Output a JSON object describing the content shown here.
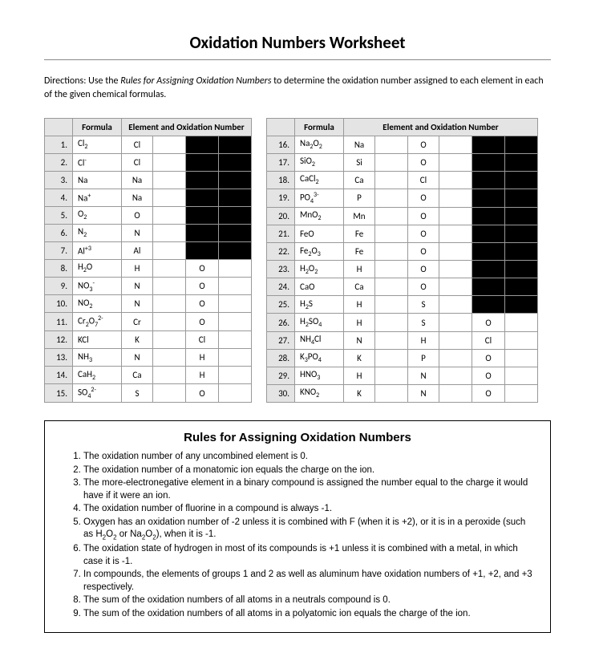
{
  "title": "Oxidation Numbers Worksheet",
  "directions_prefix": "Directions:  Use the ",
  "directions_em": "Rules for Assigning Oxidation Numbers",
  "directions_suffix": " to determine the oxidation number assigned to each element in each of the given chemical formulas.",
  "header_formula": "Formula",
  "header_element_left": "Element and Oxidation Number",
  "header_element_right": "Element and Oxidation Number",
  "left": [
    {
      "n": "1.",
      "f": "Cl<sub>2</sub>",
      "els": [
        "Cl"
      ],
      "blanks": 1,
      "blacks": 2
    },
    {
      "n": "2.",
      "f": "Cl<sup>-</sup>",
      "els": [
        "Cl"
      ],
      "blanks": 1,
      "blacks": 2
    },
    {
      "n": "3.",
      "f": "Na",
      "els": [
        "Na"
      ],
      "blanks": 1,
      "blacks": 2
    },
    {
      "n": "4.",
      "f": "Na<sup>+</sup>",
      "els": [
        "Na"
      ],
      "blanks": 1,
      "blacks": 2
    },
    {
      "n": "5.",
      "f": "O<sub>2</sub>",
      "els": [
        "O"
      ],
      "blanks": 1,
      "blacks": 2
    },
    {
      "n": "6.",
      "f": "N<sub>2</sub>",
      "els": [
        "N"
      ],
      "blanks": 1,
      "blacks": 2
    },
    {
      "n": "7.",
      "f": "Al<sup>+3</sup>",
      "els": [
        "Al"
      ],
      "blanks": 1,
      "blacks": 2
    },
    {
      "n": "8.",
      "f": "H<sub>2</sub>O",
      "els": [
        "H",
        "O"
      ],
      "blanks": 2,
      "blacks": 0
    },
    {
      "n": "9.",
      "f": "NO<sub>3</sub><sup>-</sup>",
      "els": [
        "N",
        "O"
      ],
      "blanks": 2,
      "blacks": 0
    },
    {
      "n": "10.",
      "f": "NO<sub>2</sub>",
      "els": [
        "N",
        "O"
      ],
      "blanks": 2,
      "blacks": 0
    },
    {
      "n": "11.",
      "f": "Cr<sub>2</sub>O<sub>7</sub><sup>2-</sup>",
      "els": [
        "Cr",
        "O"
      ],
      "blanks": 2,
      "blacks": 0
    },
    {
      "n": "12.",
      "f": "KCl",
      "els": [
        "K",
        "Cl"
      ],
      "blanks": 2,
      "blacks": 0
    },
    {
      "n": "13.",
      "f": "NH<sub>3</sub>",
      "els": [
        "N",
        "H"
      ],
      "blanks": 2,
      "blacks": 0
    },
    {
      "n": "14.",
      "f": "CaH<sub>2</sub>",
      "els": [
        "Ca",
        "H"
      ],
      "blanks": 2,
      "blacks": 0
    },
    {
      "n": "15.",
      "f": "SO<sub>4</sub><sup>2-</sup>",
      "els": [
        "S",
        "O"
      ],
      "blanks": 2,
      "blacks": 0
    }
  ],
  "right": [
    {
      "n": "16.",
      "f": "Na<sub>2</sub>O<sub>2</sub>",
      "els": [
        "Na",
        "O"
      ],
      "blanks": 2,
      "blacks": 2
    },
    {
      "n": "17.",
      "f": "SiO<sub>2</sub>",
      "els": [
        "Si",
        "O"
      ],
      "blanks": 2,
      "blacks": 2
    },
    {
      "n": "18.",
      "f": "CaCl<sub>2</sub>",
      "els": [
        "Ca",
        "Cl"
      ],
      "blanks": 2,
      "blacks": 2
    },
    {
      "n": "19.",
      "f": "PO<sub>4</sub><sup>3-</sup>",
      "els": [
        "P",
        "O"
      ],
      "blanks": 2,
      "blacks": 2
    },
    {
      "n": "20.",
      "f": "MnO<sub>2</sub>",
      "els": [
        "Mn",
        "O"
      ],
      "blanks": 2,
      "blacks": 2
    },
    {
      "n": "21.",
      "f": "FeO",
      "els": [
        "Fe",
        "O"
      ],
      "blanks": 2,
      "blacks": 2
    },
    {
      "n": "22.",
      "f": "Fe<sub>2</sub>O<sub>3</sub>",
      "els": [
        "Fe",
        "O"
      ],
      "blanks": 2,
      "blacks": 2
    },
    {
      "n": "23.",
      "f": "H<sub>2</sub>O<sub>2</sub>",
      "els": [
        "H",
        "O"
      ],
      "blanks": 2,
      "blacks": 2
    },
    {
      "n": "24.",
      "f": "CaO",
      "els": [
        "Ca",
        "O"
      ],
      "blanks": 2,
      "blacks": 2
    },
    {
      "n": "25.",
      "f": "H<sub>2</sub>S",
      "els": [
        "H",
        "S"
      ],
      "blanks": 2,
      "blacks": 2
    },
    {
      "n": "26.",
      "f": "H<sub>2</sub>SO<sub>4</sub>",
      "els": [
        "H",
        "S",
        "O"
      ],
      "blanks": 3,
      "blacks": 0
    },
    {
      "n": "27.",
      "f": "NH<sub>4</sub>Cl",
      "els": [
        "N",
        "H",
        "Cl"
      ],
      "blanks": 3,
      "blacks": 0
    },
    {
      "n": "28.",
      "f": "K<sub>3</sub>PO<sub>4</sub>",
      "els": [
        "K",
        "P",
        "O"
      ],
      "blanks": 3,
      "blacks": 0
    },
    {
      "n": "29.",
      "f": "HNO<sub>3</sub>",
      "els": [
        "H",
        "N",
        "O"
      ],
      "blanks": 3,
      "blacks": 0
    },
    {
      "n": "30.",
      "f": "KNO<sub>2</sub>",
      "els": [
        "K",
        "N",
        "O"
      ],
      "blanks": 3,
      "blacks": 0
    }
  ],
  "rules_title": "Rules for Assigning Oxidation Numbers",
  "rules": [
    "The oxidation number of any uncombined element is 0.",
    "The oxidation number of a monatomic ion equals the charge on the ion.",
    "The more-electronegative element in a binary compound is assigned the number equal to the charge it would have if it were an ion.",
    "The oxidation number of fluorine in a compound is always -1.",
    "Oxygen has an oxidation number of -2 unless it is combined with F (when it is +2), or it is in a peroxide (such as H<sub>2</sub>O<sub>2</sub> or Na<sub>2</sub>O<sub>2</sub>), when it is -1.",
    "The oxidation state of hydrogen in most of its compounds is +1 unless it is combined with a metal, in which case it is -1.",
    "In compounds, the elements of groups 1 and 2 as well as aluminum have oxidation numbers of +1, +2, and +3 respectively.",
    "The sum of the oxidation numbers of all atoms in a neutrals compound is 0.",
    "The sum of the oxidation numbers of all atoms in a polyatomic ion equals the charge of the ion."
  ]
}
